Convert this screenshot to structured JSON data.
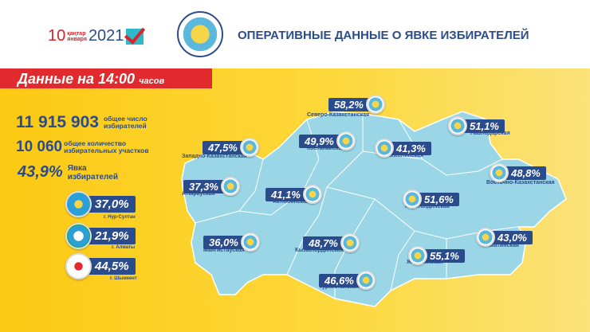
{
  "header": {
    "date_day": "10",
    "date_month_kz": "қаңтар",
    "date_month_ru": "января",
    "date_year": "2021",
    "title": "ОПЕРАТИВНЫЕ ДАННЫЕ О ЯВКЕ ИЗБИРАТЕЛЕЙ"
  },
  "banner": {
    "main": "Данные на 14:00",
    "suffix": "часов"
  },
  "stats": [
    {
      "value": "11 915 903",
      "label1": "общее число",
      "label2": "избирателей"
    },
    {
      "value": "10 060",
      "label1": "общее количество",
      "label2": "избирательных участков"
    },
    {
      "value": "43,9%",
      "label1": "Явка",
      "label2": "избирателей"
    }
  ],
  "cities": [
    {
      "value": "37,0%",
      "name": "г. Нур-Султан"
    },
    {
      "value": "21,9%",
      "name": "г. Алматы"
    },
    {
      "value": "44,5%",
      "name": "г. Шымкент"
    }
  ],
  "regions": [
    {
      "value": "58,2%",
      "name": "Северо-Казахстанская"
    },
    {
      "value": "51,1%",
      "name": "Павлодарская"
    },
    {
      "value": "47,5%",
      "name": "Западно-Казахстанская"
    },
    {
      "value": "49,9%",
      "name": "Костанайская"
    },
    {
      "value": "41,3%",
      "name": "Акмолинская"
    },
    {
      "value": "48,8%",
      "name": "Восточно-Казахстанская"
    },
    {
      "value": "37,3%",
      "name": "Атырауская"
    },
    {
      "value": "41,1%",
      "name": "Актюбинская"
    },
    {
      "value": "51,6%",
      "name": "Карагандинская"
    },
    {
      "value": "36,0%",
      "name": "Мангистауская"
    },
    {
      "value": "48,7%",
      "name": "Кызылординская"
    },
    {
      "value": "43,0%",
      "name": "Алматинская"
    },
    {
      "value": "55,1%",
      "name": "Жамбылская"
    },
    {
      "value": "46,6%",
      "name": "Туркестанская"
    }
  ],
  "colors": {
    "accent": "#2b4c8c",
    "banner": "#e02a2d",
    "background": "#fdd83a",
    "map": "#9ad6e6"
  }
}
